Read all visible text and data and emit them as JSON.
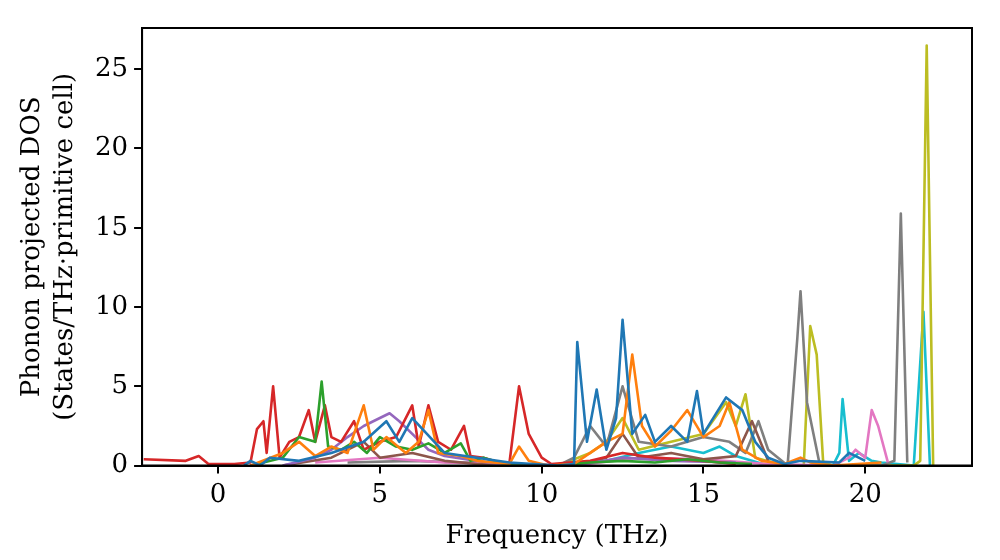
{
  "chart_data": {
    "type": "line",
    "xlabel": "Frequency (THz)",
    "ylabel": "Phonon projected DOS\n(States/THz·primitive cell)",
    "xlim": [
      -2.35,
      23.3
    ],
    "ylim": [
      0,
      27.6
    ],
    "xticks": [
      0,
      5,
      10,
      15,
      20
    ],
    "yticks": [
      0,
      5,
      10,
      15,
      20,
      25
    ],
    "grid": false,
    "legend": false,
    "marker": "none",
    "line_style": "solid",
    "series": [
      {
        "color": "#1f77b4",
        "x": [
          0.8,
          1.0,
          1.3,
          1.6,
          2.5,
          3.5,
          4.5,
          5.2,
          5.6,
          6.0,
          7.0,
          8.0,
          9.0,
          10.5,
          11.0,
          11.1,
          11.4,
          11.7,
          12.0,
          12.3,
          12.5,
          12.8,
          13.2,
          13.5,
          14.0,
          14.5,
          14.8,
          15.0,
          15.7,
          16.2,
          16.6,
          17.0,
          17.5,
          18.0,
          19.2,
          19.5,
          20.0
        ],
        "values": [
          0,
          0.3,
          0,
          0.5,
          0.3,
          0.8,
          1.5,
          2.8,
          1.5,
          3.0,
          0.8,
          0.5,
          0.2,
          0,
          0.1,
          7.8,
          1.5,
          4.8,
          1.0,
          3.0,
          9.2,
          2.0,
          3.2,
          1.5,
          2.5,
          1.5,
          4.7,
          2.0,
          4.3,
          3.5,
          1.5,
          0.5,
          0.1,
          0.3,
          0.2,
          0.8,
          0.3
        ]
      },
      {
        "color": "#ff7f0e",
        "x": [
          1.0,
          2.0,
          2.5,
          3.0,
          3.5,
          4.0,
          4.5,
          4.8,
          5.2,
          5.8,
          6.2,
          6.5,
          6.8,
          7.5,
          8.0,
          9.0,
          9.3,
          9.6,
          10.2,
          11.0,
          11.5,
          12.0,
          12.5,
          12.8,
          13.1,
          13.5,
          14.0,
          14.5,
          15.0,
          15.5,
          15.8,
          16.2,
          16.8,
          17.5,
          18.0,
          18.3,
          19.0,
          20.5
        ],
        "values": [
          0,
          0.8,
          1.5,
          0.6,
          1.2,
          0.8,
          3.8,
          1.0,
          1.8,
          0.8,
          1.5,
          3.5,
          0.8,
          0.6,
          0.3,
          0.1,
          1.2,
          0.3,
          0,
          0.1,
          0.8,
          1.5,
          2.0,
          7.0,
          2.5,
          1.2,
          2.2,
          3.5,
          1.8,
          2.5,
          4.0,
          1.0,
          0.3,
          0.1,
          0.5,
          0.2,
          0,
          0.2
        ]
      },
      {
        "color": "#2ca02c",
        "x": [
          1.0,
          2.0,
          2.5,
          3.0,
          3.2,
          3.4,
          3.8,
          4.2,
          4.6,
          5.0,
          5.5,
          6.0,
          6.5,
          7.0,
          7.5,
          7.8,
          8.2,
          9.0,
          10.5,
          11.5,
          12.5,
          13.5,
          14.5,
          15.5,
          16.5
        ],
        "values": [
          0,
          0.5,
          1.8,
          1.5,
          5.3,
          1.2,
          1.0,
          1.5,
          0.8,
          1.8,
          1.2,
          1.0,
          1.4,
          0.8,
          1.4,
          0.3,
          0.5,
          0,
          0,
          0.2,
          0.3,
          0.2,
          0.4,
          0.2,
          0.1
        ]
      },
      {
        "color": "#d62728",
        "x": [
          -2.3,
          -1.0,
          -0.6,
          -0.3,
          0.5,
          1.0,
          1.2,
          1.4,
          1.5,
          1.7,
          1.9,
          2.2,
          2.5,
          2.8,
          3.0,
          3.3,
          3.5,
          3.8,
          4.2,
          4.5,
          5.0,
          5.5,
          6.0,
          6.2,
          6.5,
          6.8,
          7.2,
          7.6,
          7.8,
          8.2,
          8.5,
          9.0,
          9.3,
          9.6,
          10.0,
          10.3,
          11.5,
          12.5,
          13.5,
          15.0,
          16.0
        ],
        "values": [
          0.4,
          0.3,
          0.6,
          0.1,
          0.1,
          0.2,
          2.3,
          2.8,
          0.8,
          5.0,
          0.5,
          1.5,
          1.8,
          3.5,
          1.5,
          3.8,
          1.8,
          1.5,
          2.8,
          1.0,
          1.5,
          1.8,
          3.8,
          1.2,
          3.8,
          1.5,
          1.0,
          2.5,
          0.6,
          0.5,
          0.3,
          0.1,
          5.0,
          2.0,
          0.5,
          0.1,
          0.3,
          0.8,
          0.5,
          0.3,
          0.1
        ]
      },
      {
        "color": "#9467bd",
        "x": [
          2.0,
          3.0,
          3.5,
          4.0,
          4.5,
          5.0,
          5.3,
          5.6,
          6.0,
          6.5,
          7.0,
          8.0,
          9.0,
          11.0,
          12.5,
          14.0,
          16.0
        ],
        "values": [
          0,
          0.5,
          1.0,
          1.8,
          2.5,
          3.0,
          3.3,
          2.8,
          2.0,
          1.0,
          0.6,
          0.3,
          0,
          0,
          0.5,
          0.3,
          0.2
        ]
      },
      {
        "color": "#8c564b",
        "x": [
          2.0,
          3.5,
          4.5,
          5.0,
          6.0,
          7.0,
          8.0,
          11.0,
          12.0,
          12.5,
          13.0,
          14.0,
          15.0,
          16.0,
          16.5,
          17.0
        ],
        "values": [
          0,
          0.5,
          1.5,
          0.5,
          0.8,
          0.3,
          0.1,
          0,
          0.5,
          2.0,
          0.5,
          0.8,
          0.4,
          0.6,
          2.8,
          0.3
        ]
      },
      {
        "color": "#e377c2",
        "x": [
          3.0,
          5.0,
          7.0,
          11.0,
          13.0,
          15.0,
          17.0,
          19.0,
          19.5,
          19.7,
          20.0,
          20.2,
          20.4,
          20.7
        ],
        "values": [
          0.2,
          0.5,
          0.2,
          0,
          0.5,
          0.4,
          0.1,
          0,
          0.5,
          1.0,
          0.5,
          3.5,
          2.5,
          0.2
        ]
      },
      {
        "color": "#7f7f7f",
        "x": [
          4.0,
          6.0,
          10.5,
          11.0,
          11.5,
          12.0,
          12.5,
          13.0,
          14.0,
          15.0,
          15.8,
          16.3,
          16.7,
          17.0,
          17.6,
          17.9,
          18.0,
          18.2,
          18.6,
          20.5,
          20.9,
          21.1,
          21.3
        ],
        "values": [
          0.2,
          0.3,
          0,
          0.5,
          2.5,
          1.2,
          5.0,
          1.5,
          1.2,
          1.8,
          1.5,
          0.8,
          2.8,
          1.0,
          0,
          8.0,
          11.0,
          4.0,
          0,
          0,
          0.3,
          15.9,
          0.2
        ]
      },
      {
        "color": "#bcbd22",
        "x": [
          10.5,
          11.5,
          12.0,
          12.5,
          13.0,
          14.0,
          15.0,
          15.7,
          16.0,
          16.3,
          16.6,
          17.5,
          18.1,
          18.3,
          18.5,
          18.7,
          19.0,
          21.5,
          21.7,
          21.9,
          22.1
        ],
        "values": [
          0,
          0.8,
          1.5,
          3.0,
          1.0,
          1.5,
          2.0,
          4.0,
          2.5,
          4.5,
          0.5,
          0,
          0,
          8.8,
          7.0,
          0.2,
          0,
          0,
          0.3,
          26.5,
          0
        ]
      },
      {
        "color": "#17becf",
        "x": [
          10.5,
          12.0,
          13.0,
          14.0,
          15.0,
          15.5,
          16.0,
          16.5,
          17.0,
          19.0,
          19.2,
          19.3,
          19.5,
          19.8,
          20.2,
          20.5,
          21.5,
          21.8,
          22.0
        ],
        "values": [
          0,
          0.3,
          0.8,
          1.2,
          0.8,
          1.2,
          0.6,
          0.3,
          0,
          0,
          0.8,
          4.2,
          0.3,
          0.8,
          0.3,
          0.2,
          0,
          9.7,
          0
        ]
      }
    ]
  }
}
